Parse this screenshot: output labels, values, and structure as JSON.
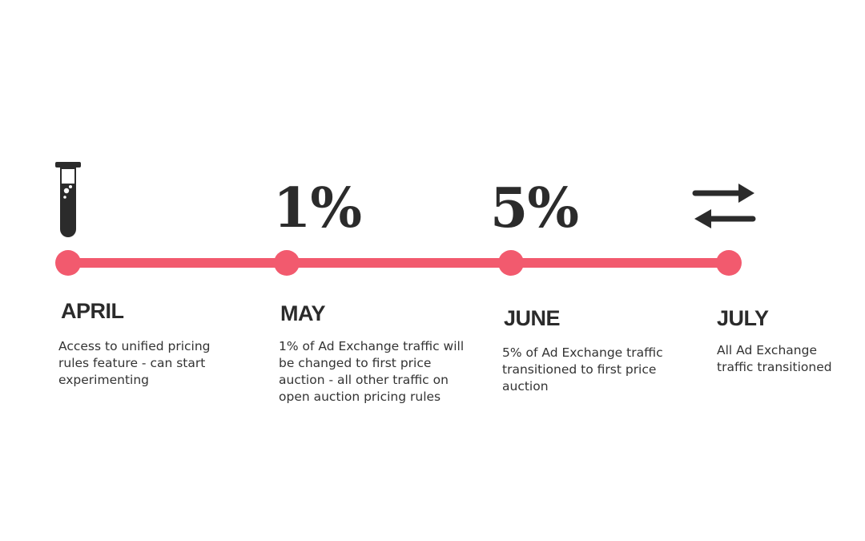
{
  "colors": {
    "accent": "#f25a6e",
    "text": "#2b2b2b"
  },
  "stages": [
    {
      "icon": "test-tube-icon",
      "stat": "",
      "month": "APRIL",
      "description": "Access to unified pricing rules feature - can start experimenting"
    },
    {
      "icon": "",
      "stat": "1%",
      "month": "MAY",
      "description": "1% of Ad Exchange traffic will be changed to first price auction - all other traffic on open auction pricing rules"
    },
    {
      "icon": "",
      "stat": "5%",
      "month": "JUNE",
      "description": "5% of Ad Exchange traffic transitioned to first price auction"
    },
    {
      "icon": "swap-arrows-icon",
      "stat": "",
      "month": "JULY",
      "description": "All Ad Exchange traffic transitioned"
    }
  ]
}
